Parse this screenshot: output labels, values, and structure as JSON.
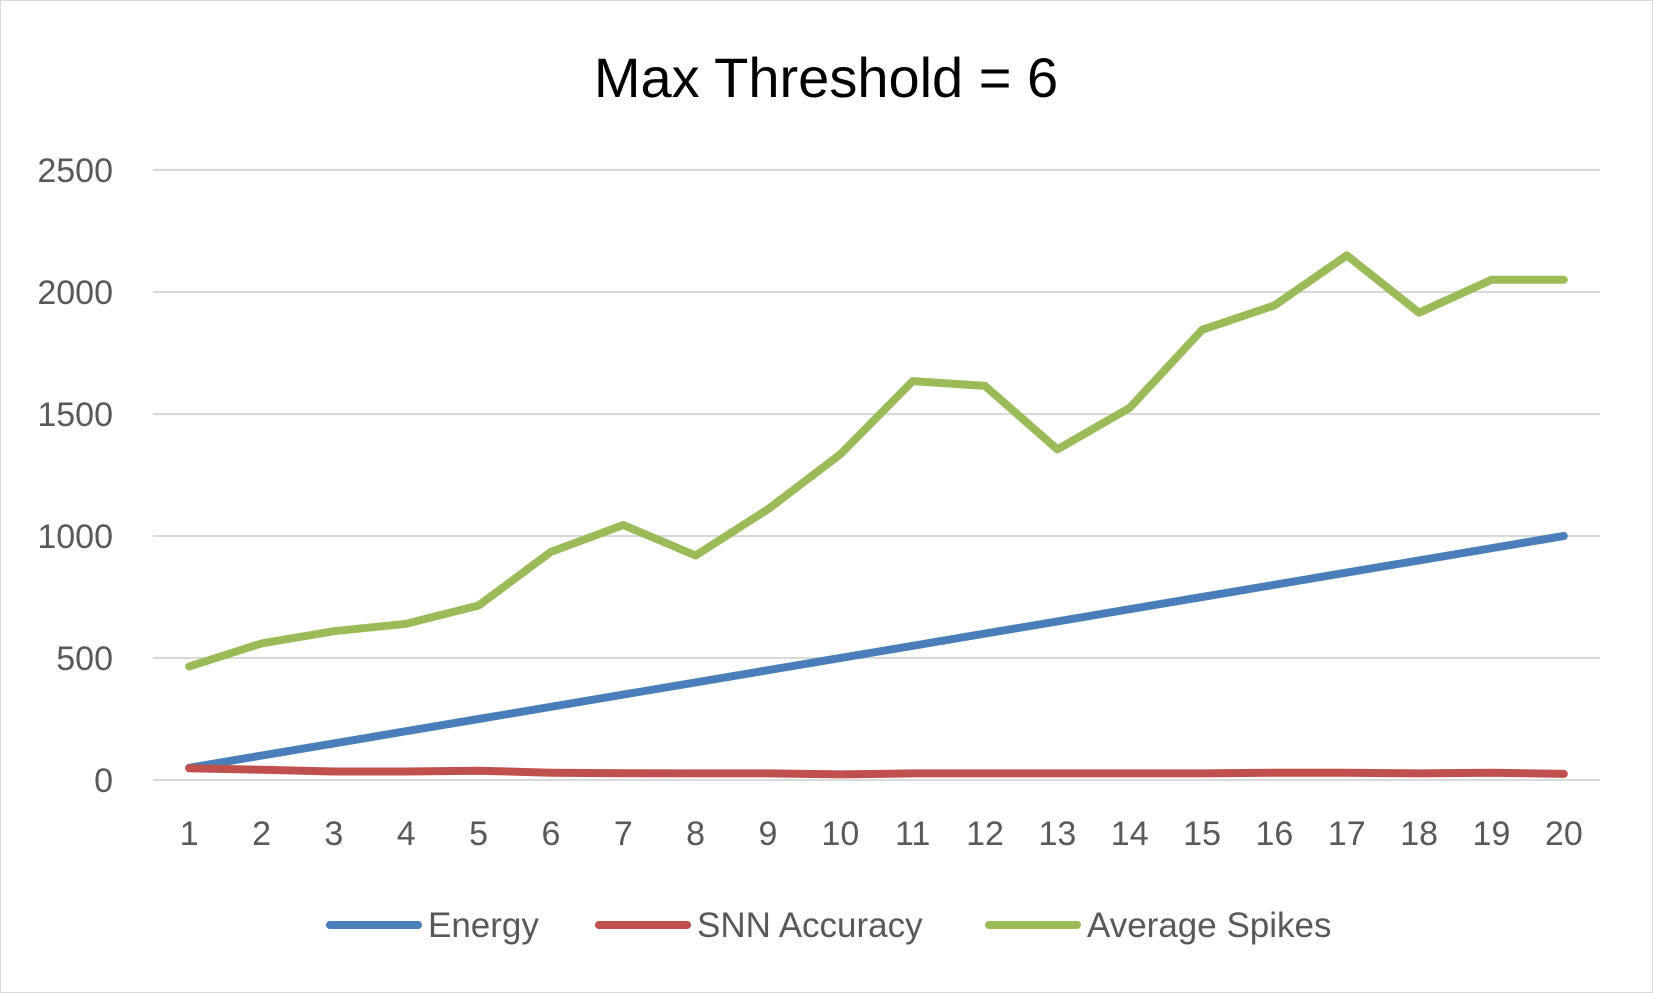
{
  "chart_data": {
    "type": "line",
    "title": "Max Threshold = 6",
    "xlabel": "",
    "ylabel": "",
    "categories": [
      "1",
      "2",
      "3",
      "4",
      "5",
      "6",
      "7",
      "8",
      "9",
      "10",
      "11",
      "12",
      "13",
      "14",
      "15",
      "16",
      "17",
      "18",
      "19",
      "20"
    ],
    "ylim": [
      0,
      2500
    ],
    "yticks": [
      0,
      500,
      1000,
      1500,
      2000,
      2500
    ],
    "grid": true,
    "legend": "bottom",
    "series": [
      {
        "name": "Energy",
        "color": "#4a7ebb",
        "values": [
          50,
          100,
          150,
          200,
          250,
          300,
          350,
          400,
          450,
          500,
          550,
          600,
          650,
          700,
          750,
          800,
          850,
          900,
          950,
          1000
        ]
      },
      {
        "name": "SNN Accuracy",
        "color": "#c0504d",
        "values": [
          48,
          42,
          35,
          35,
          38,
          30,
          28,
          27,
          27,
          23,
          27,
          27,
          27,
          27,
          27,
          30,
          30,
          27,
          30,
          25
        ]
      },
      {
        "name": "Average Spikes",
        "color": "#9bbb59",
        "values": [
          465,
          560,
          610,
          640,
          715,
          935,
          1045,
          920,
          1110,
          1335,
          1635,
          1615,
          1355,
          1525,
          1845,
          1945,
          2150,
          1915,
          2050,
          2050
        ]
      }
    ]
  }
}
